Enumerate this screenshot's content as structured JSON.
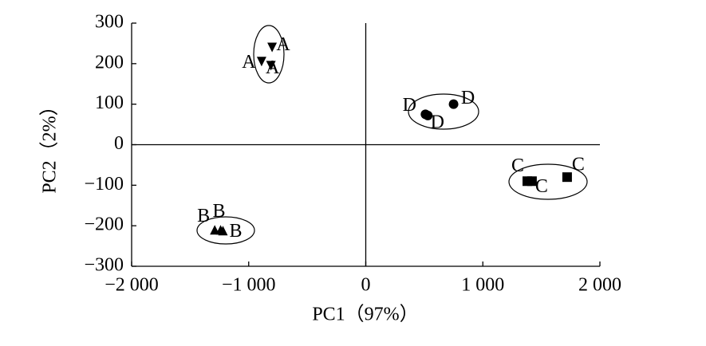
{
  "chart_data": {
    "type": "scatter",
    "xlabel": "PC1（97%）",
    "ylabel": "PC2（2%）",
    "xlim": [
      -2000,
      2000
    ],
    "xticks": [
      {
        "value": -2000,
        "label": "−2 000"
      },
      {
        "value": -1000,
        "label": "−1 000"
      },
      0,
      {
        "value": 1000,
        "label": "1 000"
      },
      {
        "value": 2000,
        "label": "2 000"
      }
    ],
    "ylim": [
      -300,
      300
    ],
    "yticks": [
      {
        "value": -300,
        "label": "−300"
      },
      {
        "value": -200,
        "label": "−200"
      },
      {
        "value": -100,
        "label": "−100"
      },
      0,
      100,
      200,
      300
    ],
    "zero_lines": true,
    "series": [
      {
        "name": "A",
        "color": "#000000",
        "marker": "triangle-down",
        "x": [
          -800,
          -890,
          -810
        ],
        "values": [
          240,
          205,
          195
        ]
      },
      {
        "name": "B",
        "color": "#000000",
        "marker": "triangle-up",
        "x": [
          -1290,
          -1240,
          -1220
        ],
        "values": [
          -210,
          -210,
          -212
        ]
      },
      {
        "name": "C",
        "color": "#000000",
        "marker": "square",
        "x": [
          1380,
          1420,
          1720
        ],
        "values": [
          -90,
          -90,
          -80
        ]
      },
      {
        "name": "D",
        "color": "#000000",
        "marker": "circle",
        "x": [
          510,
          530,
          750
        ],
        "values": [
          75,
          72,
          100
        ]
      }
    ]
  }
}
